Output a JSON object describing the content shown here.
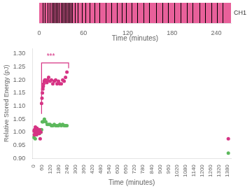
{
  "chart_data": [
    {
      "type": "event",
      "xlabel": "Time (minutes)",
      "color": "#e8609a",
      "series": [
        {
          "name": "CH1",
          "values": [
            5,
            8,
            11,
            14,
            17,
            19,
            21,
            23,
            25,
            27,
            29,
            31,
            33,
            35,
            37,
            39,
            41,
            43,
            45,
            48,
            52,
            58,
            63,
            68,
            75,
            82,
            90,
            98,
            105,
            112,
            118,
            125,
            133,
            141,
            149,
            158,
            167,
            175,
            183,
            192,
            200,
            208,
            217,
            225,
            233,
            241,
            249
          ]
        }
      ],
      "xlim": [
        0,
        260
      ],
      "xticks": [
        0,
        60,
        120,
        180,
        240
      ],
      "tick_labels": "x",
      "grid": false
    },
    {
      "type": "scatter",
      "xlabel": "Time (minutes)",
      "ylabel": "Relative Stored Energy (pJ)",
      "series": [
        {
          "color": "#d63384",
          "x": [
            5,
            8,
            10,
            13,
            16,
            19,
            22,
            25,
            28,
            31,
            34,
            38,
            42,
            46,
            50,
            55,
            60,
            63,
            66,
            69,
            72,
            75,
            79,
            83,
            88,
            93,
            98,
            103,
            110,
            120,
            130,
            140,
            150,
            160,
            170,
            180,
            190,
            200,
            210,
            220,
            230,
            240,
            1386
          ],
          "values": [
            1.005,
            0.99,
            1.01,
            1.0,
            1.02,
            1.005,
            1.005,
            0.99,
            1.015,
            1.005,
            1.0,
            1.005,
            0.995,
            1.01,
            0.975,
            1.0,
            1.11,
            1.13,
            1.15,
            1.165,
            1.175,
            1.185,
            1.195,
            1.2,
            1.2,
            1.195,
            1.19,
            1.2,
            1.21,
            1.195,
            1.2,
            1.185,
            1.195,
            1.2,
            1.185,
            1.195,
            1.185,
            1.185,
            1.2,
            1.195,
            1.21,
            1.23,
            0.975
          ]
        },
        {
          "color": "#5cb85c",
          "x": [
            5,
            10,
            15,
            20,
            25,
            30,
            35,
            40,
            45,
            50,
            55,
            60,
            65,
            70,
            80,
            90,
            100,
            110,
            120,
            130,
            140,
            150,
            160,
            170,
            180,
            190,
            200,
            210,
            220,
            230,
            240,
            1386
          ],
          "values": [
            0.98,
            0.99,
            0.975,
            1.0,
            1.005,
            0.995,
            1.0,
            1.0,
            0.995,
            1.005,
            1.0,
            1.01,
            1.04,
            1.04,
            1.05,
            1.04,
            1.03,
            1.03,
            1.03,
            1.025,
            1.025,
            1.03,
            1.025,
            1.025,
            1.025,
            1.03,
            1.025,
            1.03,
            1.025,
            1.025,
            1.025,
            0.92
          ]
        },
        {
          "type": "line",
          "color": "#d63384",
          "x": [
            60,
            60,
            252,
            252
          ],
          "values": [
            1.07,
            1.265,
            1.265,
            1.245
          ]
        }
      ],
      "annotations": [
        {
          "text": "***",
          "x": 125,
          "y": 1.275,
          "color": "#d63384"
        }
      ],
      "xlim": [
        -5,
        1405
      ],
      "xticks": [
        0,
        60,
        120,
        180,
        240,
        300,
        360,
        420,
        480,
        540,
        600,
        660,
        720,
        780,
        840,
        900,
        960,
        1020,
        1080,
        1140,
        1200,
        1260,
        1320,
        1380
      ],
      "ylim": [
        0.9,
        1.32
      ],
      "yticks": [
        {
          "value": 0.9,
          "label": "0.90"
        },
        0.95,
        {
          "value": 1.0,
          "label": "1.00"
        },
        1.05,
        {
          "value": 1.1,
          "label": "1.10"
        },
        1.15,
        {
          "value": 1.2,
          "label": "1.20"
        },
        1.25,
        {
          "value": 1.3,
          "label": "1.30"
        }
      ],
      "grid": false
    }
  ]
}
